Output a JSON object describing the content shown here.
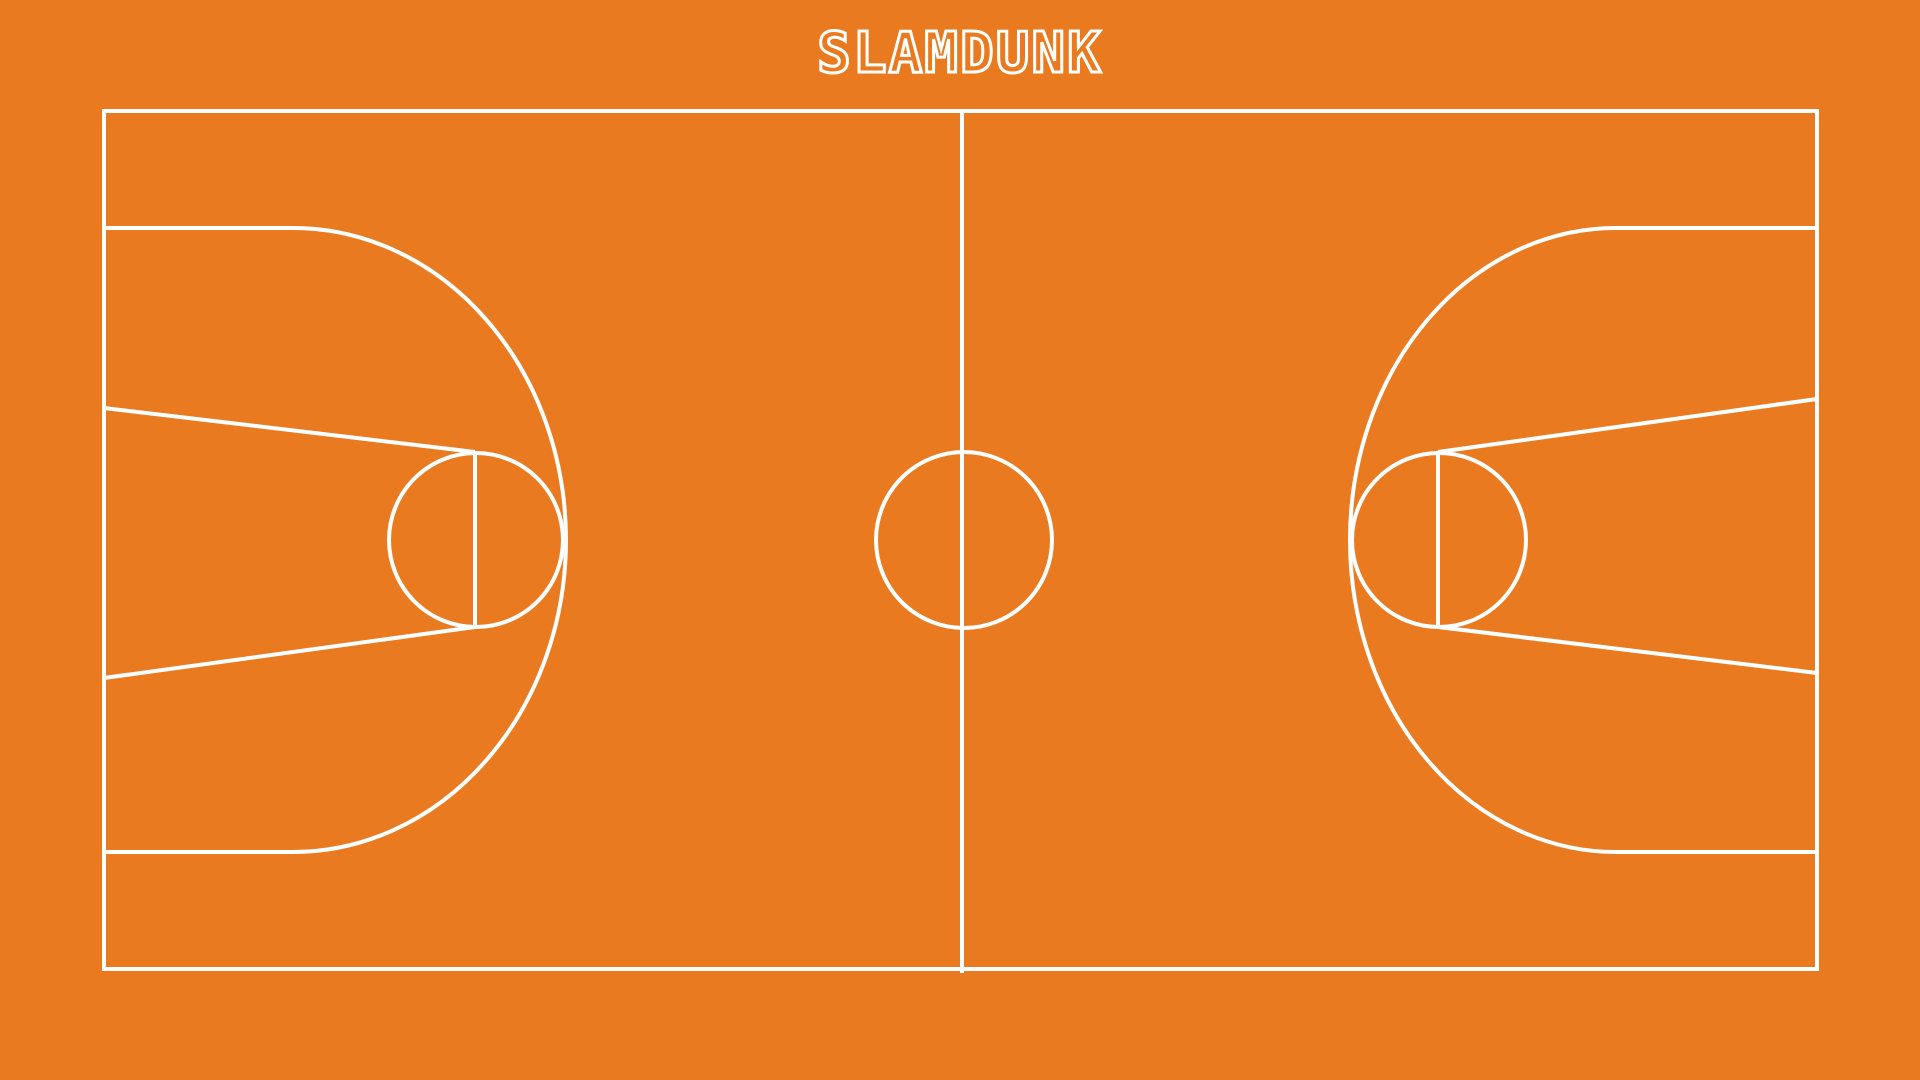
{
  "game": {
    "title": "SLAMDUNK"
  },
  "colors": {
    "background": "#EA7A1F",
    "lines": "#FFFFFF"
  }
}
